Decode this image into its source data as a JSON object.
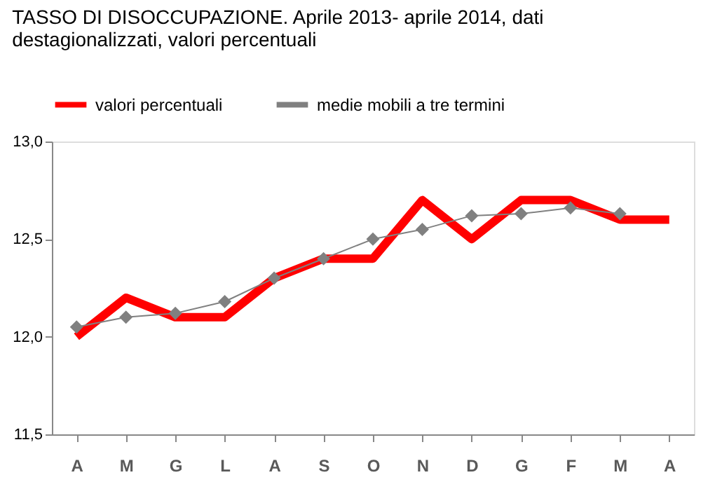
{
  "chart_data": {
    "type": "line",
    "title": "TASSO DI DISOCCUPAZIONE. Aprile 2013- aprile 2014, dati destagionalizzati, valori percentuali",
    "categories": [
      "A",
      "M",
      "G",
      "L",
      "A",
      "S",
      "O",
      "N",
      "D",
      "G",
      "F",
      "M",
      "A"
    ],
    "series": [
      {
        "name": "valori percentuali",
        "color": "#ff0000",
        "marker": "none",
        "values": [
          12.0,
          12.2,
          12.1,
          12.1,
          12.3,
          12.4,
          12.4,
          12.7,
          12.5,
          12.7,
          12.7,
          12.6,
          12.6
        ]
      },
      {
        "name": "medie mobili a tre termini",
        "color": "#808080",
        "marker": "diamond",
        "values": [
          12.05,
          12.1,
          12.12,
          12.18,
          12.3,
          12.4,
          12.5,
          12.55,
          12.62,
          12.63,
          12.66,
          12.63,
          null
        ]
      }
    ],
    "ylim": [
      11.5,
      13.0
    ],
    "yticks": [
      {
        "value": 11.5,
        "label": "11,5"
      },
      {
        "value": 12.0,
        "label": "12,0"
      },
      {
        "value": 12.5,
        "label": "12,5"
      },
      {
        "value": 13.0,
        "label": "13,0"
      }
    ],
    "grid": false,
    "legend": "top"
  }
}
